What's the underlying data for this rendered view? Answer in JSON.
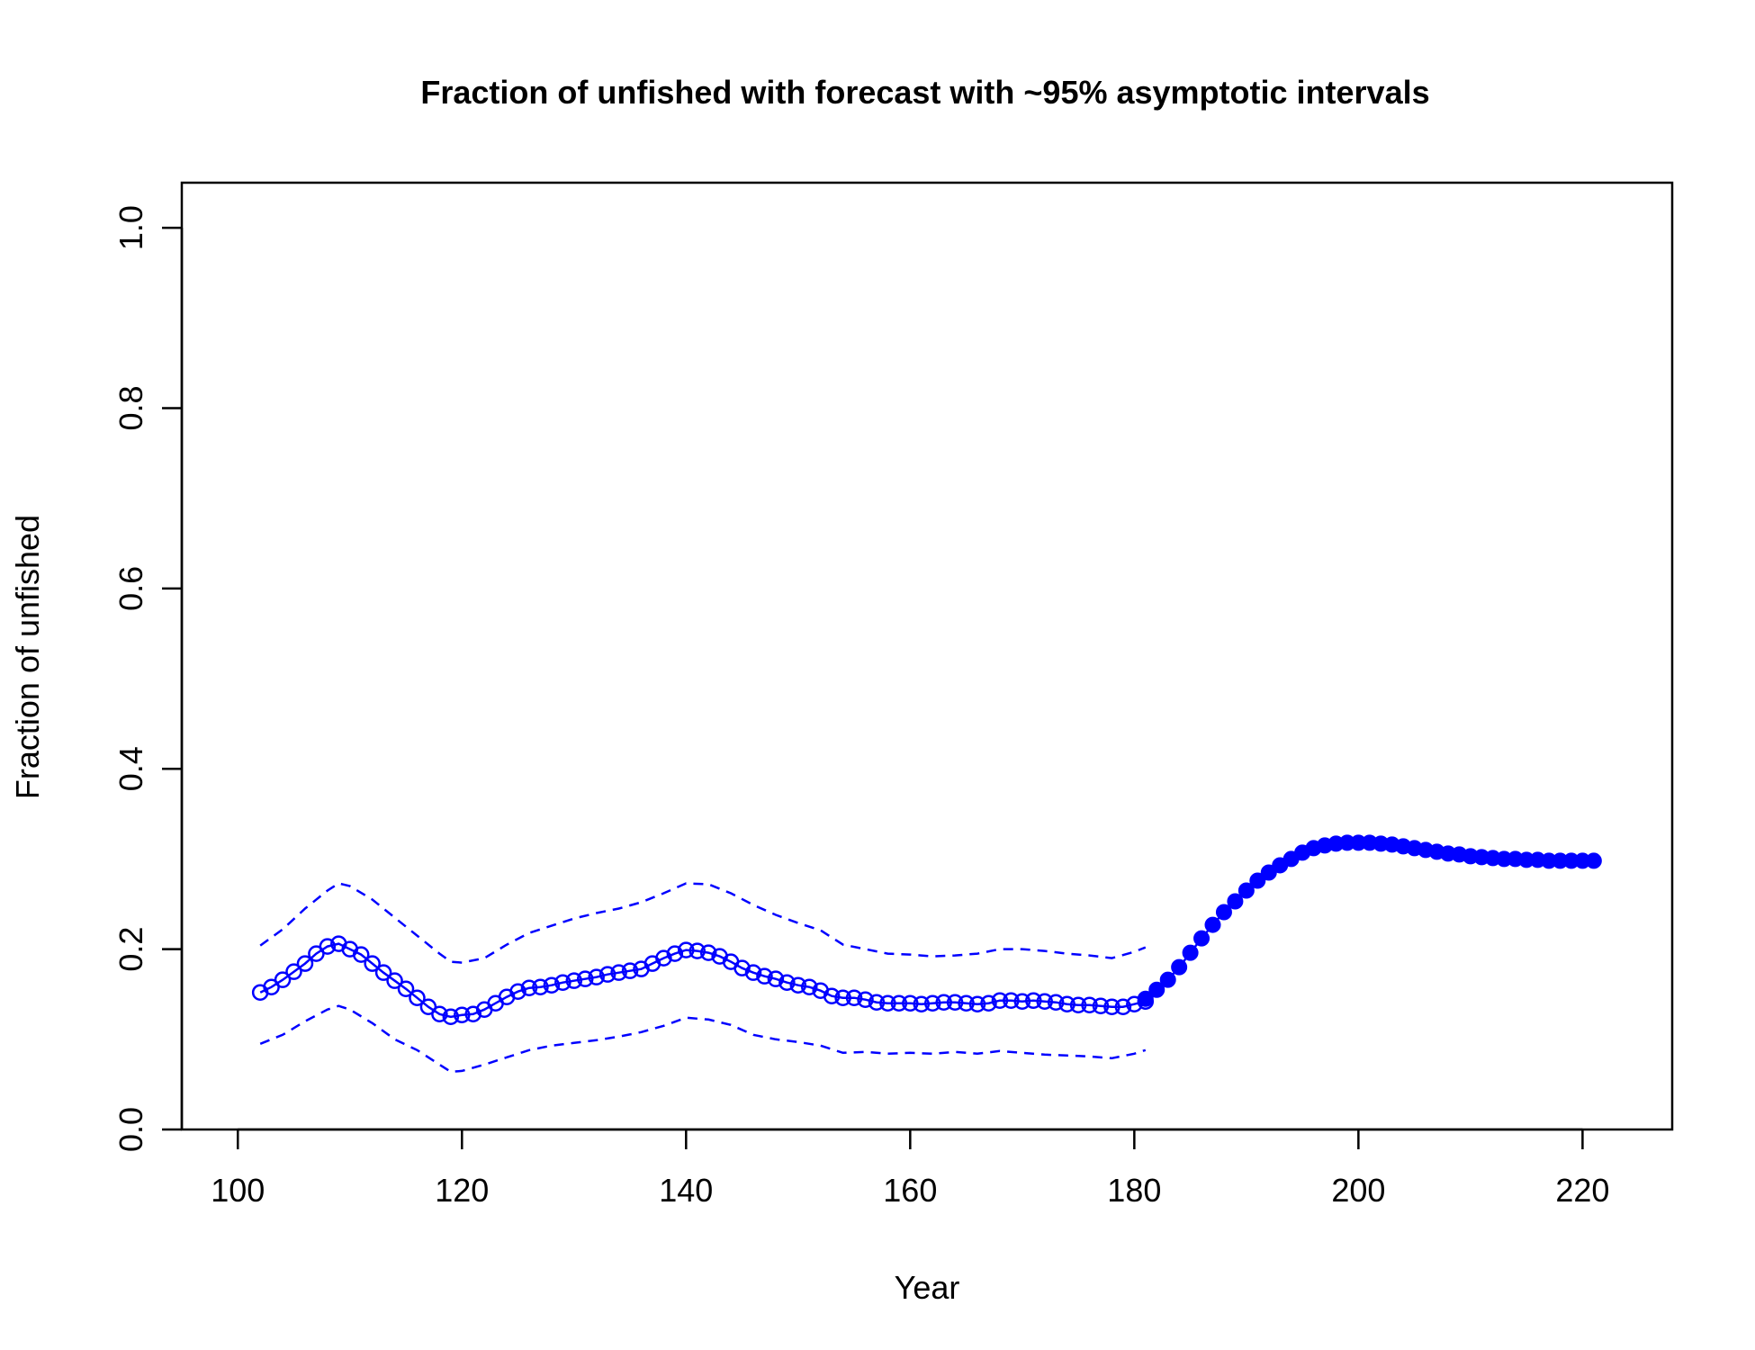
{
  "chart_data": {
    "type": "line",
    "title": "Fraction of unfished with forecast with ~95% asymptotic intervals",
    "xlabel": "Year",
    "ylabel": "Fraction of unfished",
    "xlim": [
      95,
      228
    ],
    "ylim": [
      0,
      1.05
    ],
    "x_ticks": [
      100,
      120,
      140,
      160,
      180,
      200,
      220
    ],
    "y_ticks": [
      0.0,
      0.2,
      0.4,
      0.6,
      0.8,
      1.0
    ],
    "x_tick_labels": [
      "100",
      "120",
      "140",
      "160",
      "180",
      "200",
      "220"
    ],
    "y_tick_labels": [
      "0.0",
      "0.2",
      "0.4",
      "0.6",
      "0.8",
      "1.0"
    ],
    "grid": false,
    "legend": "none",
    "colors": {
      "series": "#0000ff",
      "axes": "#000000"
    },
    "series": [
      {
        "role": "estimate",
        "marker": "open-circle",
        "x": [
          102,
          103,
          104,
          105,
          106,
          107,
          108,
          109,
          110,
          111,
          112,
          113,
          114,
          115,
          116,
          117,
          118,
          119,
          120,
          121,
          122,
          123,
          124,
          125,
          126,
          127,
          128,
          129,
          130,
          131,
          132,
          133,
          134,
          135,
          136,
          137,
          138,
          139,
          140,
          141,
          142,
          143,
          144,
          145,
          146,
          147,
          148,
          149,
          150,
          151,
          152,
          153,
          154,
          155,
          156,
          157,
          158,
          159,
          160,
          161,
          162,
          163,
          164,
          165,
          166,
          167,
          168,
          169,
          170,
          171,
          172,
          173,
          174,
          175,
          176,
          177,
          178,
          179,
          180,
          181
        ],
        "y": [
          0.152,
          0.158,
          0.166,
          0.175,
          0.184,
          0.195,
          0.203,
          0.206,
          0.2,
          0.194,
          0.184,
          0.174,
          0.165,
          0.156,
          0.146,
          0.136,
          0.128,
          0.125,
          0.127,
          0.128,
          0.133,
          0.14,
          0.147,
          0.153,
          0.157,
          0.158,
          0.16,
          0.163,
          0.165,
          0.167,
          0.169,
          0.172,
          0.174,
          0.176,
          0.178,
          0.184,
          0.19,
          0.195,
          0.199,
          0.198,
          0.196,
          0.192,
          0.186,
          0.179,
          0.174,
          0.17,
          0.167,
          0.163,
          0.16,
          0.158,
          0.154,
          0.148,
          0.146,
          0.146,
          0.144,
          0.141,
          0.14,
          0.14,
          0.14,
          0.139,
          0.14,
          0.141,
          0.141,
          0.14,
          0.139,
          0.14,
          0.143,
          0.143,
          0.142,
          0.143,
          0.142,
          0.141,
          0.139,
          0.138,
          0.138,
          0.137,
          0.136,
          0.136,
          0.139,
          0.142
        ]
      },
      {
        "role": "forecast",
        "marker": "filled-circle",
        "x": [
          181,
          182,
          183,
          184,
          185,
          186,
          187,
          188,
          189,
          190,
          191,
          192,
          193,
          194,
          195,
          196,
          197,
          198,
          199,
          200,
          201,
          202,
          203,
          204,
          205,
          206,
          207,
          208,
          209,
          210,
          211,
          212,
          213,
          214,
          215,
          216,
          217,
          218,
          219,
          220,
          221
        ],
        "y": [
          0.145,
          0.155,
          0.166,
          0.18,
          0.196,
          0.212,
          0.227,
          0.241,
          0.253,
          0.265,
          0.276,
          0.285,
          0.293,
          0.3,
          0.307,
          0.312,
          0.315,
          0.317,
          0.318,
          0.318,
          0.318,
          0.317,
          0.316,
          0.314,
          0.312,
          0.31,
          0.308,
          0.306,
          0.305,
          0.303,
          0.302,
          0.301,
          0.3,
          0.3,
          0.299,
          0.299,
          0.298,
          0.298,
          0.298,
          0.298,
          0.298
        ]
      },
      {
        "role": "upper-95",
        "line": "dashed",
        "x": [
          102,
          104,
          106,
          108,
          109,
          110,
          112,
          114,
          116,
          118,
          119,
          120,
          122,
          124,
          126,
          128,
          130,
          132,
          134,
          136,
          138,
          140,
          142,
          144,
          146,
          148,
          150,
          152,
          154,
          156,
          158,
          160,
          162,
          164,
          166,
          168,
          170,
          172,
          174,
          176,
          178,
          180,
          181
        ],
        "y": [
          0.204,
          0.222,
          0.245,
          0.265,
          0.273,
          0.27,
          0.255,
          0.235,
          0.215,
          0.195,
          0.186,
          0.185,
          0.19,
          0.205,
          0.218,
          0.226,
          0.234,
          0.24,
          0.245,
          0.252,
          0.262,
          0.273,
          0.272,
          0.262,
          0.249,
          0.238,
          0.229,
          0.221,
          0.205,
          0.2,
          0.195,
          0.194,
          0.192,
          0.193,
          0.195,
          0.2,
          0.2,
          0.198,
          0.195,
          0.193,
          0.19,
          0.197,
          0.202
        ]
      },
      {
        "role": "lower-95",
        "line": "dashed",
        "x": [
          102,
          104,
          106,
          108,
          109,
          110,
          112,
          114,
          116,
          118,
          119,
          120,
          122,
          124,
          126,
          128,
          130,
          132,
          134,
          136,
          138,
          140,
          142,
          144,
          146,
          148,
          150,
          152,
          154,
          156,
          158,
          160,
          162,
          164,
          166,
          168,
          170,
          172,
          174,
          176,
          178,
          180,
          181
        ],
        "y": [
          0.095,
          0.105,
          0.12,
          0.133,
          0.137,
          0.133,
          0.118,
          0.1,
          0.088,
          0.072,
          0.064,
          0.065,
          0.072,
          0.08,
          0.088,
          0.093,
          0.096,
          0.099,
          0.103,
          0.108,
          0.115,
          0.124,
          0.122,
          0.116,
          0.105,
          0.1,
          0.097,
          0.093,
          0.085,
          0.086,
          0.084,
          0.085,
          0.084,
          0.086,
          0.084,
          0.087,
          0.085,
          0.083,
          0.082,
          0.081,
          0.079,
          0.084,
          0.088
        ]
      }
    ]
  }
}
